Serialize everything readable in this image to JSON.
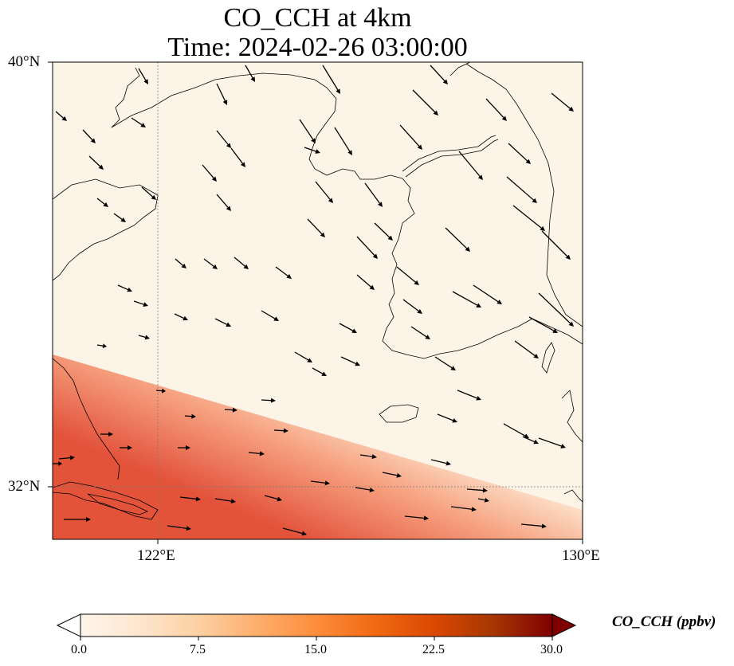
{
  "title_line1": "CO_CCH at 4km",
  "title_line2": "Time: 2024-02-26 03:00:00",
  "lat_ticks": [
    "40°N",
    "32°N"
  ],
  "lon_ticks": [
    "122°E",
    "130°E"
  ],
  "colorbar": {
    "label": "CO_CCH (ppbv)",
    "ticks": [
      "0.0",
      "7.5",
      "15.0",
      "22.5",
      "30.0"
    ],
    "colors": [
      "#fff5eb",
      "#fee6ce",
      "#fdd0a2",
      "#fdae6b",
      "#fd8d3c",
      "#f16913",
      "#d94801",
      "#a63603",
      "#7f2704"
    ],
    "extend": "both",
    "colormap": "Oranges"
  },
  "map": {
    "extent_lon": [
      120,
      130
    ],
    "extent_lat": [
      31,
      40
    ],
    "gridlines": "dotted",
    "field_colors": {
      "low": "#fdf4e8",
      "mid": "#fbc9a9",
      "high": "#e45138"
    }
  }
}
